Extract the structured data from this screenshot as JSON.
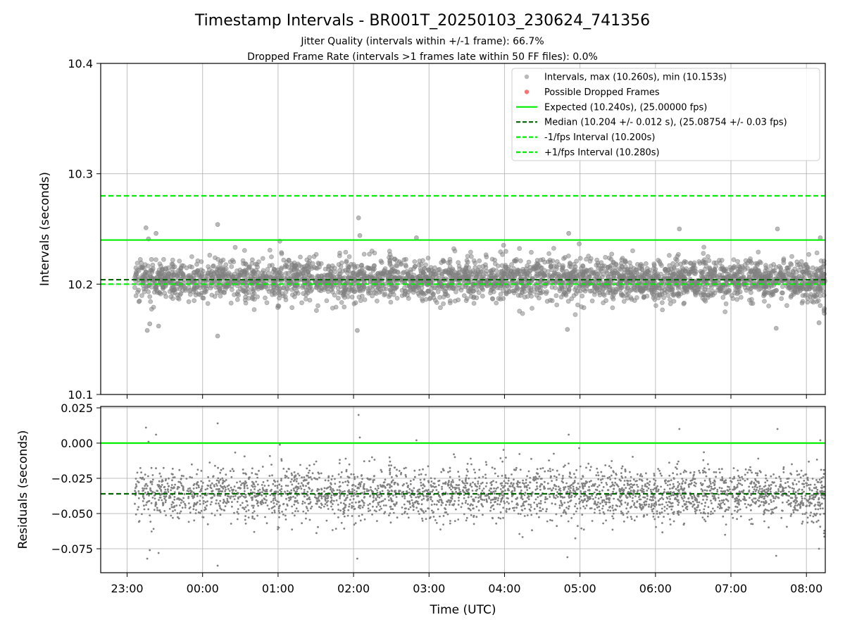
{
  "figure": {
    "title": "Timestamp Intervals - BR001T_20250103_230624_741356",
    "subtitle_1": "Jitter Quality (intervals within +/-1 frame): 66.7%",
    "subtitle_2": "Dropped Frame Rate (intervals >1 frames late within 50 FF files): 0.0%"
  },
  "colors": {
    "points": "#808080",
    "dropped": "#ff0000",
    "expected": "#00ee00",
    "median": "#006400",
    "fps_band": "#00ee00",
    "grid": "#b0b0b0"
  },
  "chart_data": [
    {
      "type": "scatter",
      "ylabel": "Intervals (seconds)",
      "xlabel": "",
      "x_start": "23:06",
      "x_end": "08:15",
      "xlim": [
        "22:39",
        "08:15"
      ],
      "ylim": [
        10.1,
        10.4
      ],
      "y_ticks": [
        "10.1",
        "10.2",
        "10.3",
        "10.4"
      ],
      "x_ticks": [
        "23:00",
        "00:00",
        "01:00",
        "02:00",
        "03:00",
        "04:00",
        "05:00",
        "06:00",
        "07:00",
        "08:00"
      ],
      "grid": true,
      "legend_position": "top-right",
      "legend": [
        "Intervals, max (10.260s), min (10.153s)",
        "Possible Dropped Frames",
        "Expected (10.240s), (25.00000 fps)",
        "Median (10.204 +/- 0.012 s), (25.08754 +/- 0.03 fps)",
        "-1/fps Interval (10.200s)",
        "+1/fps Interval (10.280s)"
      ],
      "point_count": 3200,
      "interval_max": 10.26,
      "interval_min": 10.153,
      "interval_median": 10.204,
      "interval_std": 0.012,
      "outliers": [
        {
          "x": "23:15",
          "y": 10.251
        },
        {
          "x": "23:17",
          "y": 10.241
        },
        {
          "x": "23:23",
          "y": 10.246
        },
        {
          "x": "23:16",
          "y": 10.158
        },
        {
          "x": "23:18",
          "y": 10.164
        },
        {
          "x": "23:25",
          "y": 10.162
        },
        {
          "x": "00:12",
          "y": 10.254
        },
        {
          "x": "00:12",
          "y": 10.153
        },
        {
          "x": "02:04",
          "y": 10.26
        },
        {
          "x": "02:05",
          "y": 10.244
        },
        {
          "x": "02:03",
          "y": 10.158
        },
        {
          "x": "02:50",
          "y": 10.242
        },
        {
          "x": "04:51",
          "y": 10.246
        },
        {
          "x": "04:50",
          "y": 10.159
        },
        {
          "x": "06:19",
          "y": 10.25
        },
        {
          "x": "07:37",
          "y": 10.25
        },
        {
          "x": "07:36",
          "y": 10.16
        },
        {
          "x": "08:11",
          "y": 10.242
        },
        {
          "x": "08:10",
          "y": 10.165
        },
        {
          "x": "08:14",
          "y": 10.176
        }
      ],
      "reference_lines": [
        {
          "name": "Expected (10.240s), (25.00000 fps)",
          "y": 10.24,
          "style": "solid"
        },
        {
          "name": "Median (10.204 +/- 0.012 s), (25.08754 +/- 0.03 fps)",
          "y": 10.204,
          "style": "dashed"
        },
        {
          "name": "-1/fps Interval (10.200s)",
          "y": 10.2,
          "style": "dashed"
        },
        {
          "name": "+1/fps Interval (10.280s)",
          "y": 10.28,
          "style": "dashed"
        }
      ]
    },
    {
      "type": "scatter",
      "ylabel": "Residuals (seconds)",
      "xlabel": "Time (UTC)",
      "xlim": [
        "22:39",
        "08:15"
      ],
      "ylim": [
        -0.092,
        0.026
      ],
      "y_ticks": [
        "0.025",
        "0.000",
        "−0.025",
        "−0.050",
        "−0.075"
      ],
      "x_ticks": [
        "23:00",
        "00:00",
        "01:00",
        "02:00",
        "03:00",
        "04:00",
        "05:00",
        "06:00",
        "07:00",
        "08:00"
      ],
      "grid": true,
      "point_count": 3200,
      "residual_median": -0.036,
      "residual_std": 0.012,
      "reference_lines": [
        {
          "name": "Expected",
          "y": 0.0,
          "style": "solid"
        },
        {
          "name": "Median",
          "y": -0.036,
          "style": "dashed"
        }
      ]
    }
  ]
}
